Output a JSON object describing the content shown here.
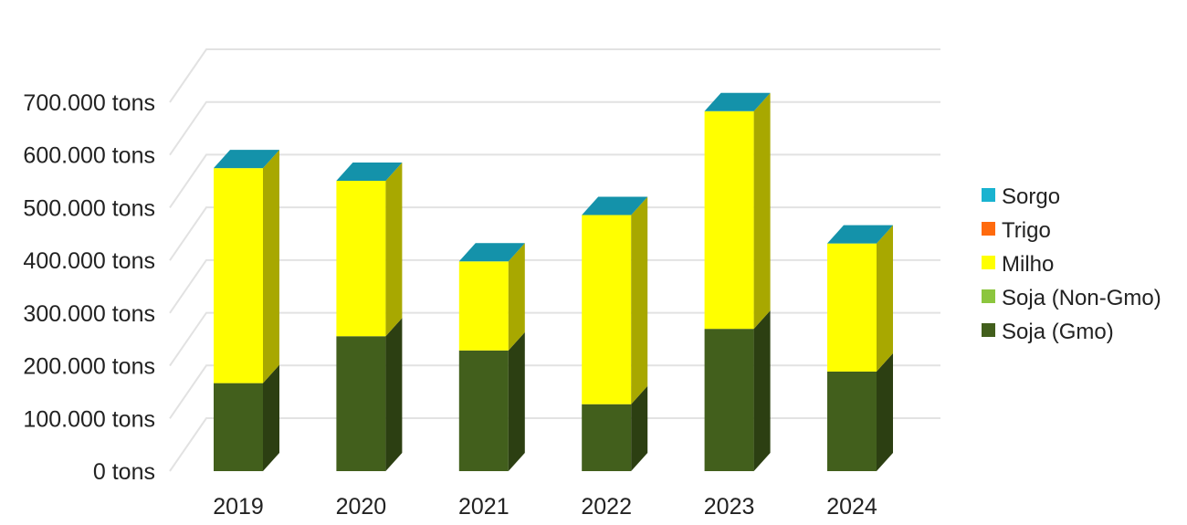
{
  "chart_data": {
    "type": "bar",
    "stacked": true,
    "three_d": true,
    "categories": [
      "2019",
      "2020",
      "2021",
      "2022",
      "2023",
      "2024"
    ],
    "series": [
      {
        "name": "Soja (Gmo)",
        "color": "#425f1c",
        "values": [
          167000,
          256000,
          229000,
          127000,
          270000,
          189000
        ]
      },
      {
        "name": "Soja (Non-Gmo)",
        "color": "#8cc63e",
        "values": [
          0,
          0,
          0,
          0,
          0,
          0
        ]
      },
      {
        "name": "Milho",
        "color": "#ffff00",
        "values": [
          408000,
          295000,
          169000,
          359000,
          413000,
          243000
        ]
      },
      {
        "name": "Trigo",
        "color": "#ff6a0d",
        "values": [
          0,
          0,
          0,
          0,
          0,
          0
        ]
      },
      {
        "name": "Sorgo",
        "color": "#19b3d0",
        "values": [
          0,
          0,
          0,
          0,
          0,
          0
        ]
      }
    ],
    "yticks": [
      "0 tons",
      "100.000 tons",
      "200.000 tons",
      "300.000 tons",
      "400.000 tons",
      "500.000 tons",
      "600.000 tons",
      "700.000 tons"
    ],
    "ylim": [
      0,
      700000
    ],
    "grid": true,
    "legend_position": "right",
    "legend_order": [
      "Sorgo",
      "Trigo",
      "Milho",
      "Soja (Non-Gmo)",
      "Soja (Gmo)"
    ],
    "top_face_color": "#19b3d0",
    "grid_color": "#e2e2e2",
    "title": "",
    "xlabel": "",
    "ylabel": ""
  }
}
